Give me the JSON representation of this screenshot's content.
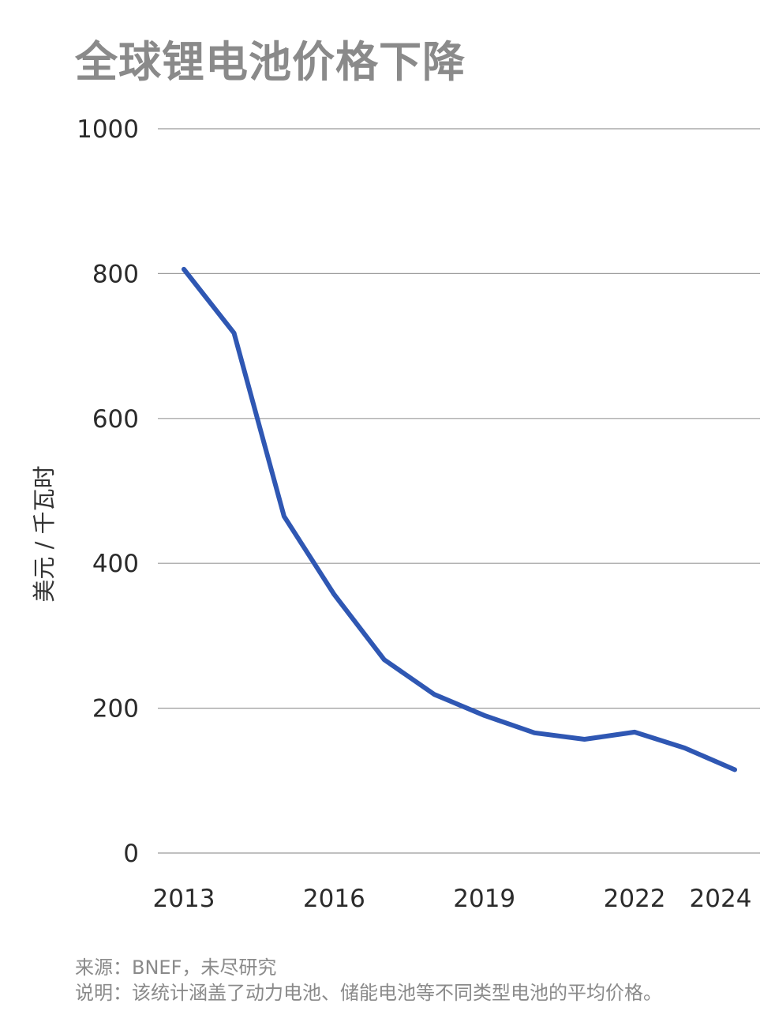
{
  "title": "全球锂电池价格下降",
  "footnote": {
    "source": "来源：BNEF，未尽研究",
    "note": "说明：该统计涵盖了动力电池、储能电池等不同类型电池的平均价格。"
  },
  "chart_data": {
    "type": "line",
    "title": "全球锂电池价格下降",
    "xlabel": "",
    "ylabel": "美元 / 千瓦时",
    "x": [
      2013,
      2014,
      2015,
      2016,
      2017,
      2018,
      2019,
      2020,
      2021,
      2022,
      2023,
      2024
    ],
    "values": [
      806,
      718,
      465,
      357,
      267,
      219,
      190,
      166,
      157,
      167,
      145,
      115
    ],
    "xticks": [
      2013,
      2016,
      2019,
      2022,
      2024
    ],
    "xticklabels": [
      "2013",
      "2016",
      "2019",
      "2022",
      "2024"
    ],
    "yticks": [
      0,
      200,
      400,
      600,
      800,
      1000
    ],
    "yticklabels": [
      "0",
      "200",
      "400",
      "600",
      "800",
      "1000"
    ],
    "ylim": [
      0,
      1000
    ],
    "grid": true,
    "line_color": "#2f57b3",
    "grid_color": "#9a9a9a"
  }
}
